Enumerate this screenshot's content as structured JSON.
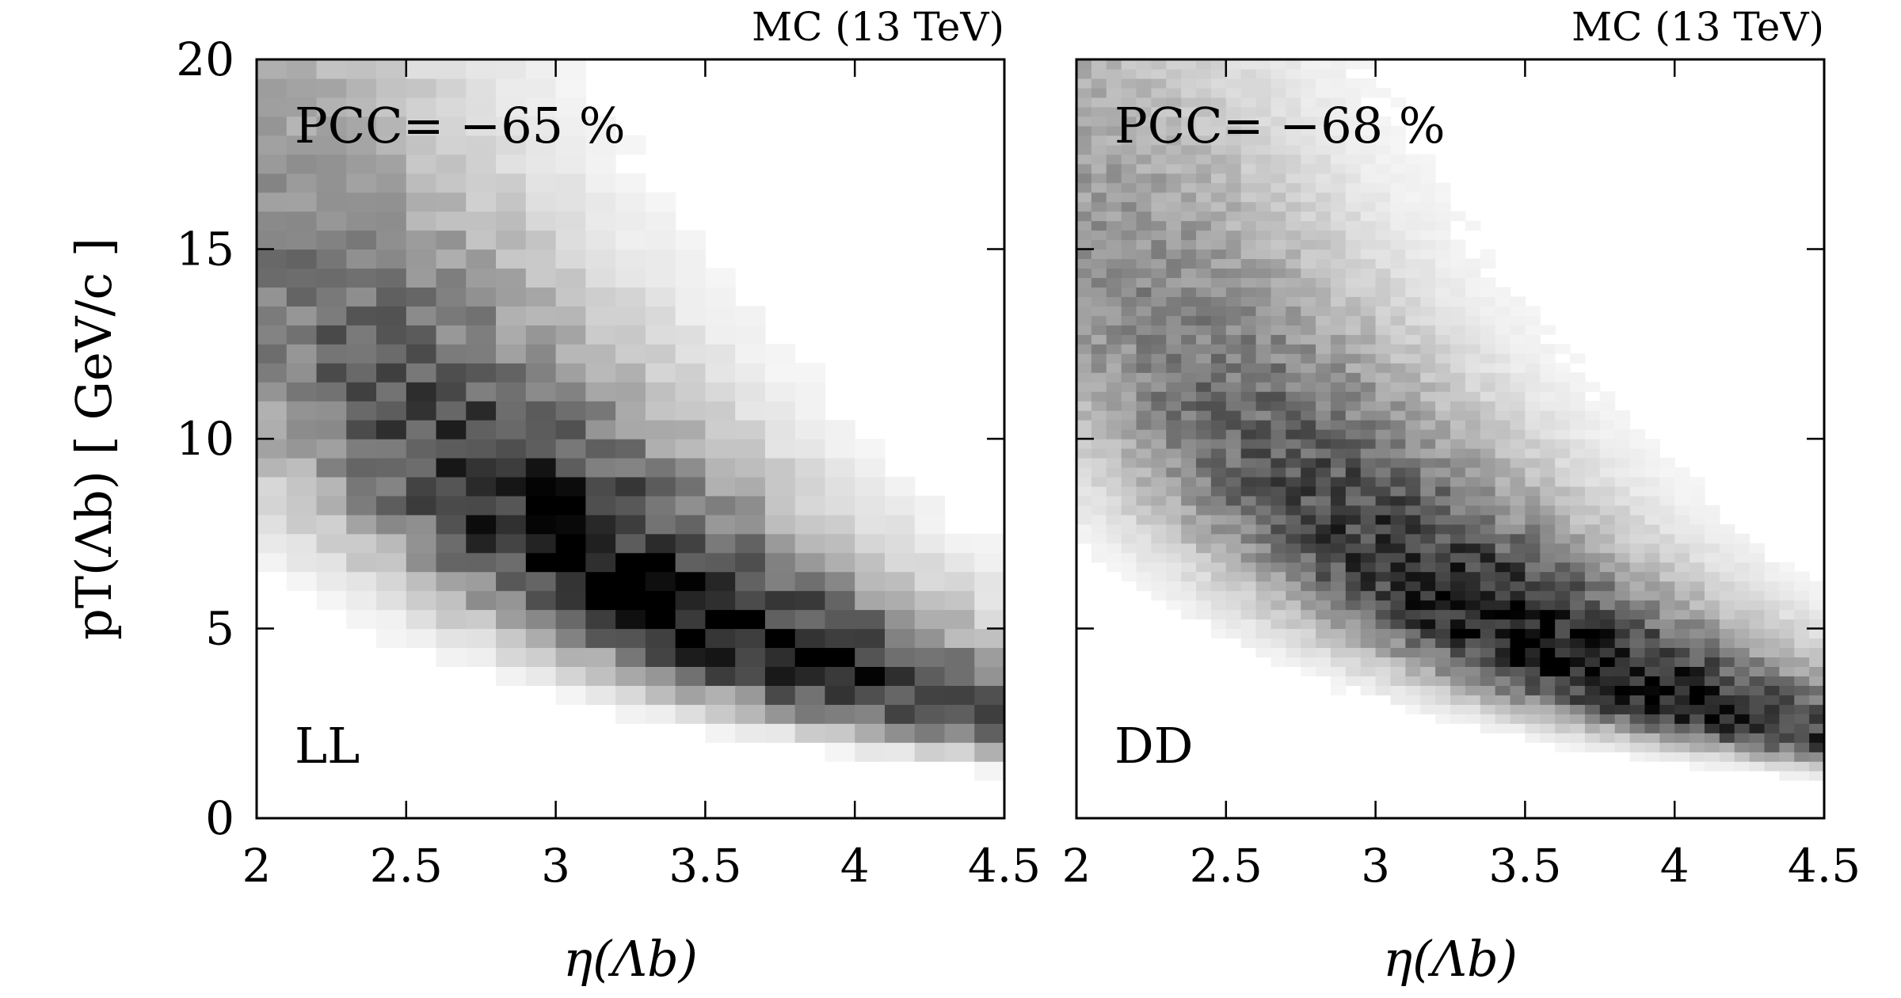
{
  "chart_data": [
    {
      "type": "heatmap",
      "panel": "LL",
      "top_label": "MC (13 TeV)",
      "annotation": "PCC= −65 %",
      "category_label": "LL",
      "xlabel": "η(Λb)",
      "ylabel": "pT(Λb) [ GeV/c ]",
      "xlim": [
        2,
        4.5
      ],
      "ylim": [
        0,
        20
      ],
      "xticks": [
        "2",
        "2.5",
        "3",
        "3.5",
        "4",
        "4.5"
      ],
      "yticks": [
        "0",
        "5",
        "10",
        "15",
        "20"
      ],
      "bins": {
        "nx": 25,
        "ny": 40
      },
      "correlation_pct": -65,
      "ridge": {
        "pt_at_eta_2": 14.0,
        "pt_at_eta_4_5": 2.6,
        "peak_eta": 3.45,
        "peak_pt": 4.6
      },
      "colorscale": "white-to-black (grayscale, density)"
    },
    {
      "type": "heatmap",
      "panel": "DD",
      "top_label": "MC (13 TeV)",
      "annotation": "PCC= −68 %",
      "category_label": "DD",
      "xlabel": "η(Λb)",
      "ylabel": "",
      "xlim": [
        2,
        4.5
      ],
      "ylim": [
        0,
        20
      ],
      "xticks": [
        "2",
        "2.5",
        "3",
        "3.5",
        "4",
        "4.5"
      ],
      "yticks": [],
      "bins": {
        "nx": 50,
        "ny": 80
      },
      "correlation_pct": -68,
      "ridge": {
        "pt_at_eta_2": 14.5,
        "pt_at_eta_4_5": 2.2,
        "peak_eta": 3.7,
        "peak_pt": 3.4
      },
      "colorscale": "white-to-black (grayscale, density)"
    }
  ]
}
